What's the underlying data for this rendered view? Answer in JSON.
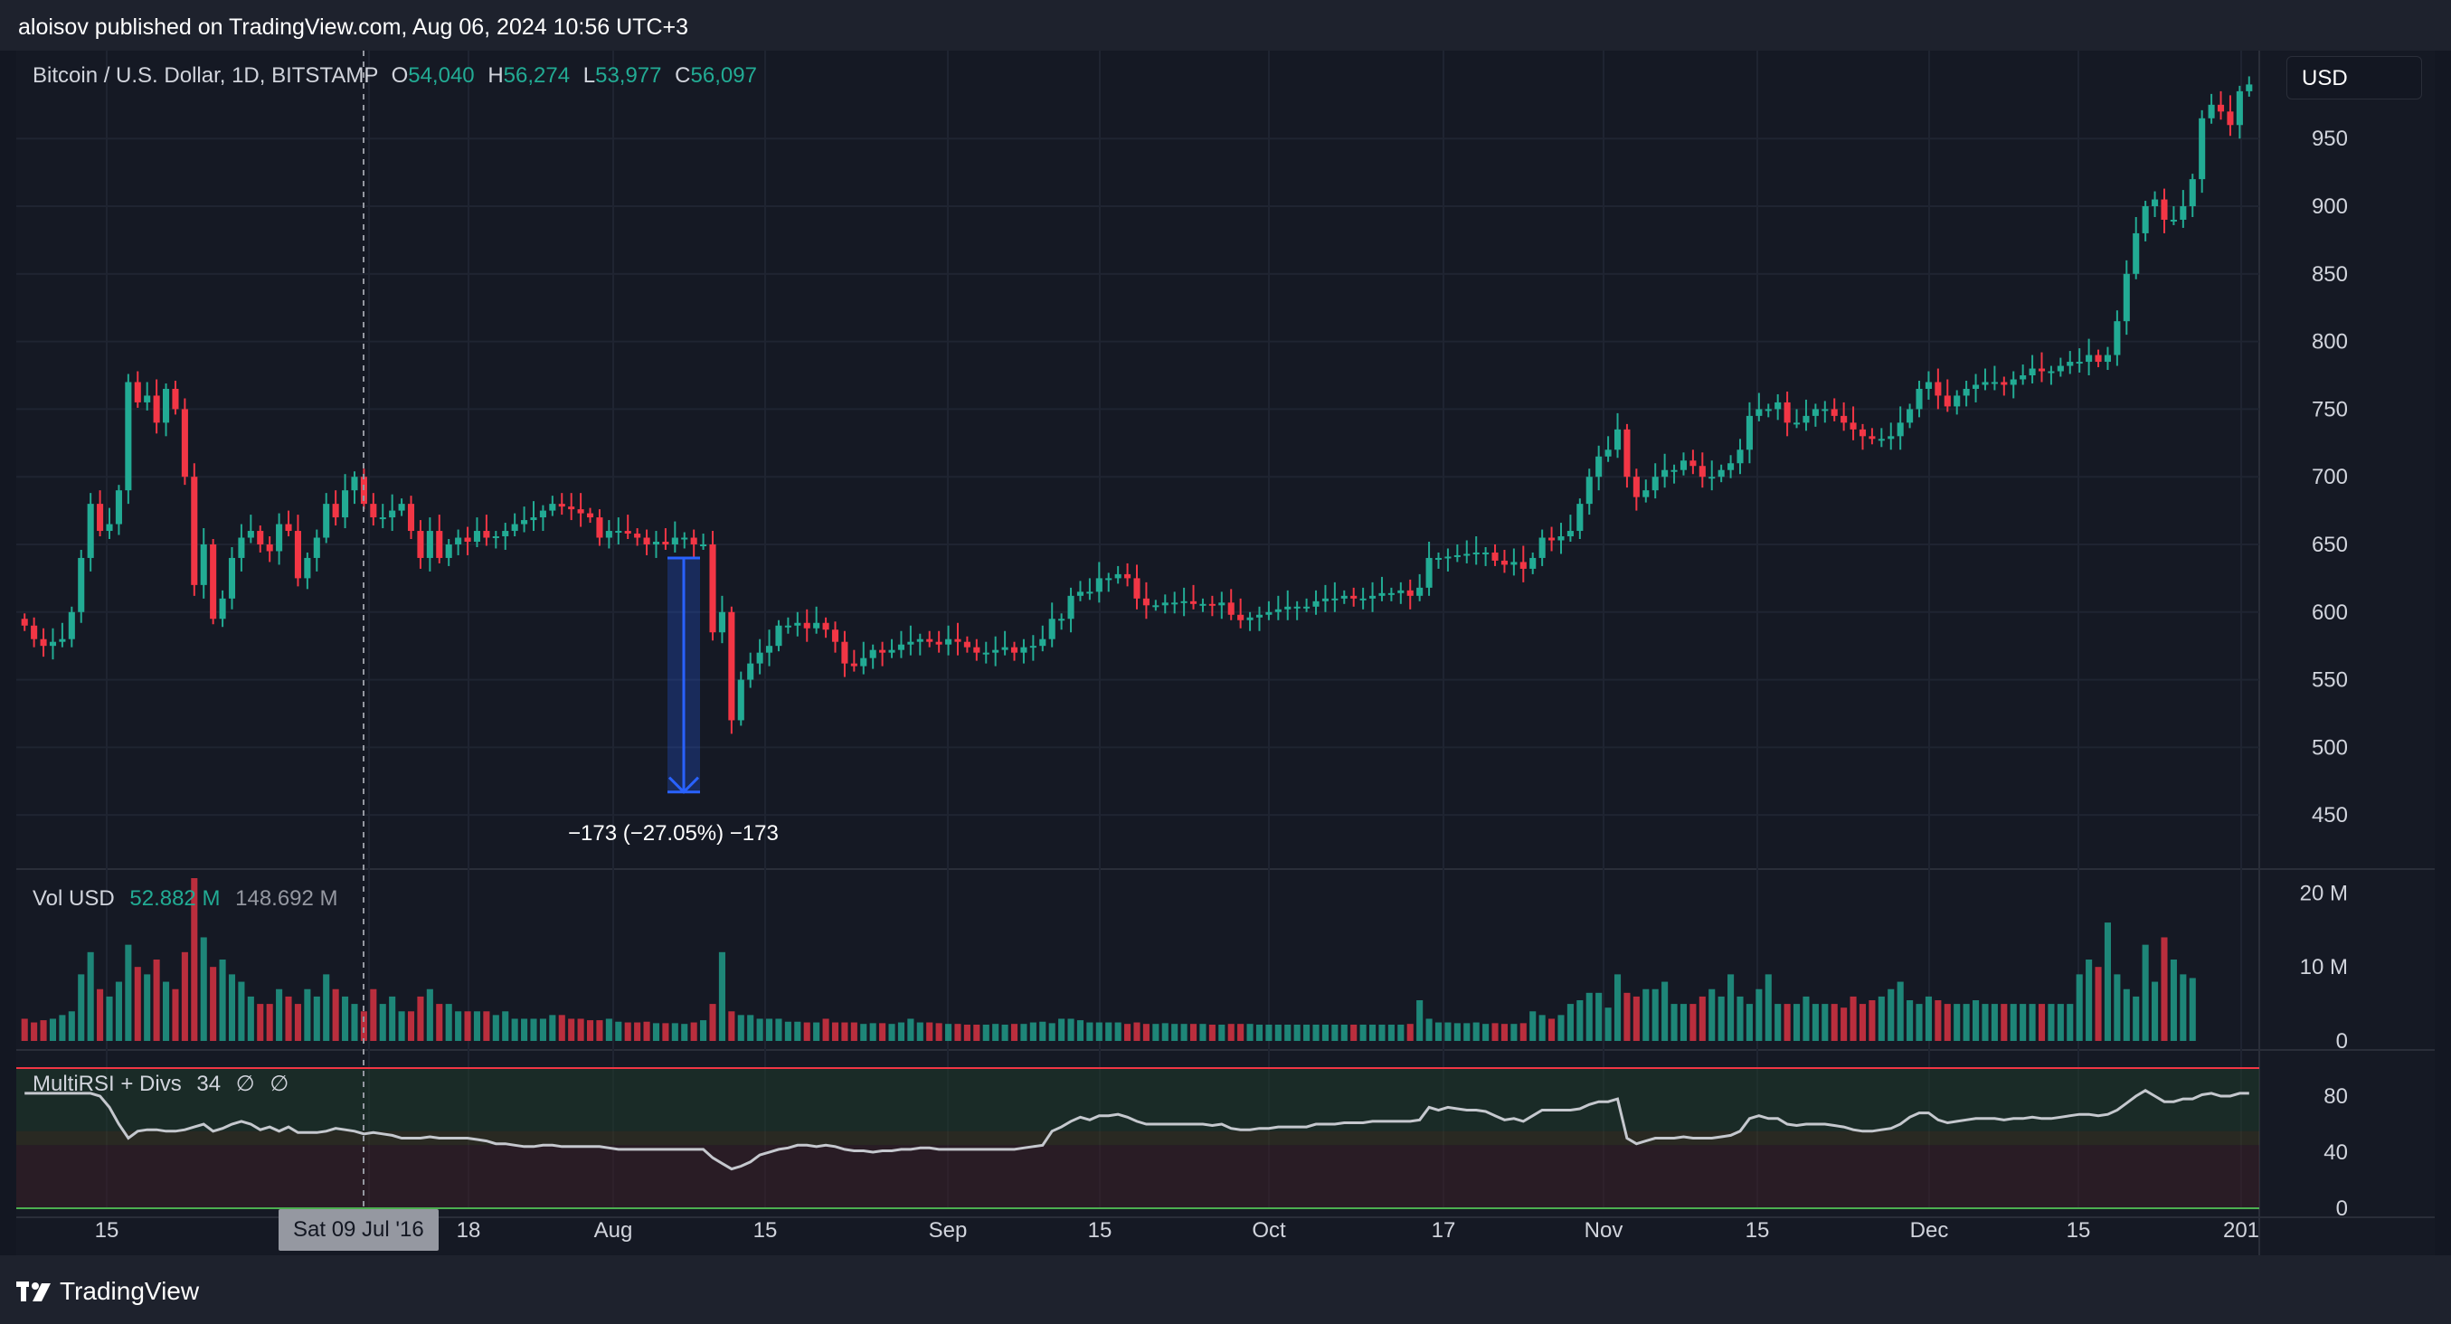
{
  "header": {
    "published_text": "aloisov published on TradingView.com, Aug 06, 2024 10:56 UTC+3"
  },
  "legend": {
    "symbol": "Bitcoin / U.S. Dollar, 1D, BITSTAMP",
    "open_label": "O",
    "open": "54,040",
    "high_label": "H",
    "high": "56,274",
    "low_label": "L",
    "low": "53,977",
    "close_label": "C",
    "close": "56,097"
  },
  "volume_legend": {
    "label": "Vol USD",
    "value": "52.882 M",
    "ma_value": "148.692 M"
  },
  "rsi_legend": {
    "label": "MultiRSI + Divs",
    "value": "34",
    "extra1": "∅",
    "extra2": "∅"
  },
  "currency_button": "USD",
  "crosshair_date": "Sat 09 Jul '16",
  "measure_tool": {
    "label": "−173 (−27.05%) −173",
    "top_price": 640,
    "bottom_price": 467
  },
  "price_axis": {
    "labels": [
      "950",
      "900",
      "850",
      "800",
      "750",
      "700",
      "650",
      "600",
      "550",
      "500",
      "450"
    ],
    "values": [
      950,
      900,
      850,
      800,
      750,
      700,
      650,
      600,
      550,
      500,
      450
    ],
    "range": [
      410,
      1015
    ]
  },
  "volume_axis": {
    "labels": [
      "20 M",
      "10 M",
      "0"
    ],
    "values": [
      20,
      10,
      0
    ]
  },
  "rsi_axis": {
    "labels": [
      "80",
      "40",
      "0"
    ],
    "values": [
      80,
      40,
      0
    ]
  },
  "time_axis": {
    "labels": [
      "15",
      "J",
      "18",
      "Aug",
      "15",
      "Sep",
      "15",
      "Oct",
      "17",
      "Nov",
      "15",
      "Dec",
      "15",
      "201"
    ]
  },
  "colors": {
    "up": "#22ab94",
    "down": "#f23645",
    "background": "#131722",
    "grid": "#1f2431",
    "measure": "#2962ff",
    "rsi_line": "#c5c8ce"
  },
  "chart_data": {
    "type": "candlestick",
    "series_name": "Bitcoin / U.S. Dollar",
    "timeframe": "1D",
    "close_prices": [
      590,
      580,
      575,
      578,
      580,
      600,
      640,
      680,
      660,
      665,
      690,
      770,
      755,
      760,
      740,
      765,
      750,
      700,
      620,
      650,
      595,
      610,
      640,
      655,
      660,
      650,
      645,
      665,
      660,
      625,
      640,
      655,
      680,
      670,
      690,
      700,
      680,
      670,
      670,
      675,
      680,
      660,
      640,
      660,
      640,
      650,
      655,
      652,
      660,
      655,
      656,
      660,
      665,
      668,
      670,
      675,
      680,
      678,
      676,
      673,
      670,
      655,
      660,
      660,
      658,
      655,
      650,
      652,
      650,
      655,
      655,
      650,
      650,
      585,
      600,
      520,
      550,
      562,
      570,
      575,
      590,
      590,
      592,
      588,
      592,
      587,
      578,
      562,
      560,
      566,
      572,
      570,
      572,
      576,
      578,
      580,
      578,
      576,
      580,
      578,
      574,
      570,
      570,
      572,
      574,
      570,
      574,
      575,
      580,
      595,
      595,
      612,
      615,
      615,
      625,
      625,
      628,
      625,
      610,
      605,
      605,
      607,
      607,
      608,
      606,
      606,
      605,
      607,
      598,
      594,
      596,
      598,
      600,
      602,
      604,
      604,
      604,
      608,
      610,
      610,
      612,
      610,
      610,
      612,
      614,
      614,
      616,
      612,
      618,
      640,
      640,
      641,
      642,
      643,
      644,
      644,
      638,
      635,
      637,
      632,
      640,
      655,
      653,
      656,
      660,
      680,
      700,
      715,
      720,
      735,
      700,
      685,
      690,
      700,
      705,
      705,
      712,
      708,
      700,
      700,
      705,
      710,
      720,
      745,
      750,
      750,
      755,
      740,
      740,
      745,
      750,
      750,
      745,
      740,
      735,
      730,
      728,
      728,
      730,
      740,
      750,
      765,
      770,
      760,
      752,
      760,
      765,
      768,
      770,
      770,
      768,
      772,
      775,
      780,
      778,
      778,
      782,
      785,
      785,
      790,
      785,
      790,
      815,
      850,
      880,
      900,
      905,
      890,
      890,
      900,
      920,
      965,
      975,
      970,
      960,
      985,
      990
    ],
    "volume_millions": [
      3,
      2.5,
      2.8,
      3,
      3.5,
      4,
      9,
      12,
      7,
      6,
      8,
      13,
      10,
      9,
      11,
      8,
      7,
      12,
      22,
      14,
      10,
      11,
      9,
      8,
      6,
      5,
      5,
      7,
      6,
      5,
      7,
      6,
      9,
      7,
      6,
      5,
      4,
      7,
      5,
      6,
      4,
      4,
      6,
      7,
      5,
      5,
      4,
      4,
      4,
      4,
      3.5,
      4,
      3,
      3,
      3,
      3,
      3.5,
      3.5,
      3,
      3,
      2.8,
      2.8,
      3,
      2.6,
      2.5,
      2.5,
      2.6,
      2.4,
      2.4,
      2.4,
      2.3,
      2.5,
      2.8,
      5,
      12,
      4,
      3.5,
      3.5,
      3,
      3,
      3,
      2.6,
      2.6,
      2.5,
      2.5,
      3,
      2.5,
      2.5,
      2.5,
      2.3,
      2.4,
      2.4,
      2.3,
      2.5,
      3,
      2.5,
      2.5,
      2.4,
      2.3,
      2.3,
      2.2,
      2.2,
      2.2,
      2.3,
      2.2,
      2.3,
      2.3,
      2.5,
      2.6,
      2.4,
      3,
      3,
      2.8,
      2.5,
      2.5,
      2.5,
      2.5,
      2.3,
      2.5,
      2.3,
      2.3,
      2.4,
      2.3,
      2.3,
      2.3,
      2.3,
      2.2,
      2.2,
      2.3,
      2.3,
      2.3,
      2.2,
      2.2,
      2.2,
      2.2,
      2.2,
      2.2,
      2.2,
      2.2,
      2.2,
      2.2,
      2.2,
      2.2,
      2.2,
      2.2,
      2.2,
      2.2,
      2.3,
      5.5,
      3,
      2.5,
      2.5,
      2.4,
      2.4,
      2.5,
      2.3,
      2.4,
      2.3,
      2.3,
      2.4,
      4,
      3.5,
      3,
      3.5,
      5,
      5.5,
      6.5,
      6.5,
      4.5,
      9,
      6.5,
      6,
      7,
      7,
      8,
      5,
      5,
      5,
      6,
      7,
      6,
      9,
      6,
      5,
      7,
      9,
      5,
      5,
      5,
      6,
      5,
      5,
      5,
      4.5,
      6,
      5,
      5.5,
      6,
      7,
      8,
      5.5,
      5,
      6,
      5.5,
      5,
      5,
      5,
      5.5,
      5,
      5,
      5,
      5,
      5,
      5,
      5,
      5,
      5,
      5,
      9,
      11,
      10,
      16,
      9,
      7,
      6,
      13,
      8,
      14,
      11,
      9,
      8.5
    ],
    "rsi_values": [
      82,
      82,
      82,
      82,
      82,
      82,
      82,
      82,
      80,
      72,
      60,
      50,
      55,
      56,
      56,
      55,
      55,
      56,
      58,
      60,
      55,
      57,
      60,
      62,
      60,
      56,
      58,
      55,
      58,
      54,
      54,
      54,
      55,
      57,
      56,
      55,
      53,
      54,
      53,
      52,
      50,
      50,
      50,
      51,
      50,
      50,
      50,
      50,
      49,
      48,
      46,
      46,
      45,
      44,
      44,
      45,
      45,
      44,
      44,
      44,
      44,
      44,
      43,
      42,
      42,
      42,
      42,
      42,
      42,
      42,
      42,
      42,
      42,
      36,
      32,
      28,
      30,
      33,
      38,
      40,
      42,
      43,
      45,
      45,
      44,
      45,
      44,
      42,
      41,
      41,
      40,
      41,
      41,
      42,
      42,
      43,
      43,
      42,
      42,
      42,
      42,
      42,
      42,
      42,
      42,
      42,
      43,
      44,
      45,
      55,
      58,
      62,
      65,
      63,
      66,
      66,
      67,
      65,
      62,
      60,
      60,
      60,
      60,
      60,
      60,
      60,
      59,
      60,
      57,
      56,
      56,
      57,
      57,
      58,
      58,
      58,
      58,
      60,
      60,
      60,
      61,
      61,
      61,
      62,
      62,
      62,
      62,
      62,
      63,
      72,
      70,
      72,
      71,
      70,
      70,
      69,
      66,
      63,
      64,
      62,
      66,
      70,
      70,
      70,
      70,
      71,
      74,
      76,
      76,
      78,
      50,
      46,
      48,
      50,
      50,
      50,
      51,
      50,
      50,
      50,
      51,
      52,
      55,
      64,
      66,
      64,
      64,
      60,
      59,
      60,
      60,
      60,
      59,
      58,
      56,
      55,
      55,
      56,
      57,
      60,
      65,
      68,
      68,
      63,
      61,
      62,
      63,
      64,
      64,
      64,
      63,
      64,
      64,
      65,
      64,
      64,
      65,
      66,
      67,
      67,
      66,
      67,
      70,
      75,
      80,
      84,
      80,
      76,
      76,
      78,
      78,
      81,
      82,
      80,
      80,
      82,
      82
    ],
    "ylim": [
      410,
      1015
    ]
  }
}
